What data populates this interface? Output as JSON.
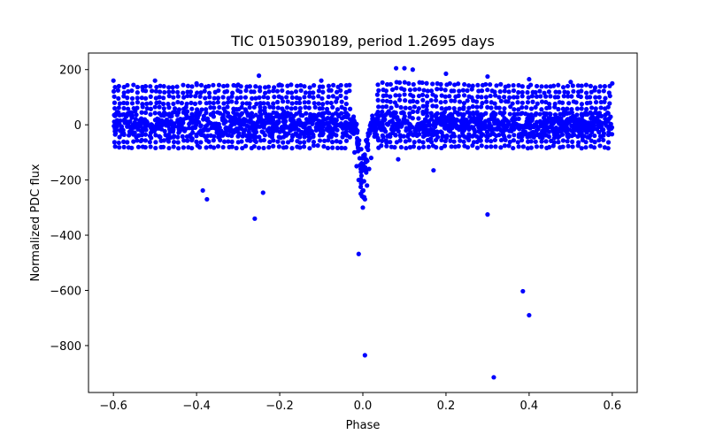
{
  "chart_data": {
    "type": "scatter",
    "title": "TIC 0150390189, period 1.2695 days",
    "xlabel": "Phase",
    "ylabel": "Normalized PDC flux",
    "xlim": [
      -0.66,
      0.66
    ],
    "ylim": [
      -970,
      260
    ],
    "xticks": [
      -0.6,
      -0.4,
      -0.2,
      0.0,
      0.2,
      0.4,
      0.6
    ],
    "xtick_labels": [
      "−0.6",
      "−0.4",
      "−0.2",
      "0.0",
      "0.2",
      "0.4",
      "0.6"
    ],
    "yticks": [
      -800,
      -600,
      -400,
      -200,
      0,
      200
    ],
    "ytick_labels": [
      "−800",
      "−600",
      "−400",
      "−200",
      "0",
      "200"
    ],
    "marker_color": "#0000ff",
    "grid": false,
    "series": [
      {
        "name": "flux",
        "band_bins": [
          {
            "x": -0.6,
            "y": 0
          },
          {
            "x": -0.55,
            "y": 0
          },
          {
            "x": -0.5,
            "y": 0
          },
          {
            "x": -0.45,
            "y": 0
          },
          {
            "x": -0.4,
            "y": 0
          },
          {
            "x": -0.35,
            "y": 0
          },
          {
            "x": -0.3,
            "y": 0
          },
          {
            "x": -0.25,
            "y": 0
          },
          {
            "x": -0.2,
            "y": 0
          },
          {
            "x": -0.15,
            "y": 0
          },
          {
            "x": -0.1,
            "y": 0
          },
          {
            "x": -0.05,
            "y": 0
          },
          {
            "x": 0.05,
            "y": 0
          },
          {
            "x": 0.1,
            "y": 0
          },
          {
            "x": 0.15,
            "y": 0
          },
          {
            "x": 0.2,
            "y": 0
          },
          {
            "x": 0.25,
            "y": 0
          },
          {
            "x": 0.3,
            "y": 0
          },
          {
            "x": 0.35,
            "y": 0
          },
          {
            "x": 0.4,
            "y": 0
          },
          {
            "x": 0.45,
            "y": 0
          },
          {
            "x": 0.5,
            "y": 0
          },
          {
            "x": 0.55,
            "y": 0
          },
          {
            "x": 0.6,
            "y": 0
          }
        ],
        "upper_arcs": [
          {
            "x": -0.6,
            "y": 160
          },
          {
            "x": -0.5,
            "y": 160
          },
          {
            "x": -0.4,
            "y": 150
          },
          {
            "x": -0.3,
            "y": 145
          },
          {
            "x": -0.2,
            "y": 145
          },
          {
            "x": -0.1,
            "y": 160
          },
          {
            "x": 0.08,
            "y": 205
          },
          {
            "x": 0.12,
            "y": 200
          },
          {
            "x": 0.2,
            "y": 185
          },
          {
            "x": 0.3,
            "y": 175
          },
          {
            "x": 0.4,
            "y": 165
          },
          {
            "x": 0.5,
            "y": 155
          },
          {
            "x": 0.6,
            "y": 150
          },
          {
            "x": -0.25,
            "y": 178
          },
          {
            "x": 0.1,
            "y": 205
          }
        ],
        "dip": [
          {
            "x": -0.02,
            "y": -100
          },
          {
            "x": -0.015,
            "y": -150
          },
          {
            "x": -0.01,
            "y": -200
          },
          {
            "x": -0.005,
            "y": -250
          },
          {
            "x": 0.0,
            "y": -300
          },
          {
            "x": 0.005,
            "y": -270
          },
          {
            "x": 0.01,
            "y": -220
          },
          {
            "x": 0.015,
            "y": -160
          },
          {
            "x": 0.02,
            "y": -120
          }
        ],
        "outliers": [
          {
            "x": -0.385,
            "y": -238
          },
          {
            "x": -0.375,
            "y": -270
          },
          {
            "x": -0.26,
            "y": -340
          },
          {
            "x": -0.24,
            "y": -246
          },
          {
            "x": -0.01,
            "y": -468
          },
          {
            "x": 0.005,
            "y": -835
          },
          {
            "x": 0.085,
            "y": -125
          },
          {
            "x": 0.17,
            "y": -165
          },
          {
            "x": 0.3,
            "y": -325
          },
          {
            "x": 0.315,
            "y": -915
          },
          {
            "x": 0.385,
            "y": -603
          },
          {
            "x": 0.4,
            "y": -690
          }
        ]
      }
    ]
  }
}
